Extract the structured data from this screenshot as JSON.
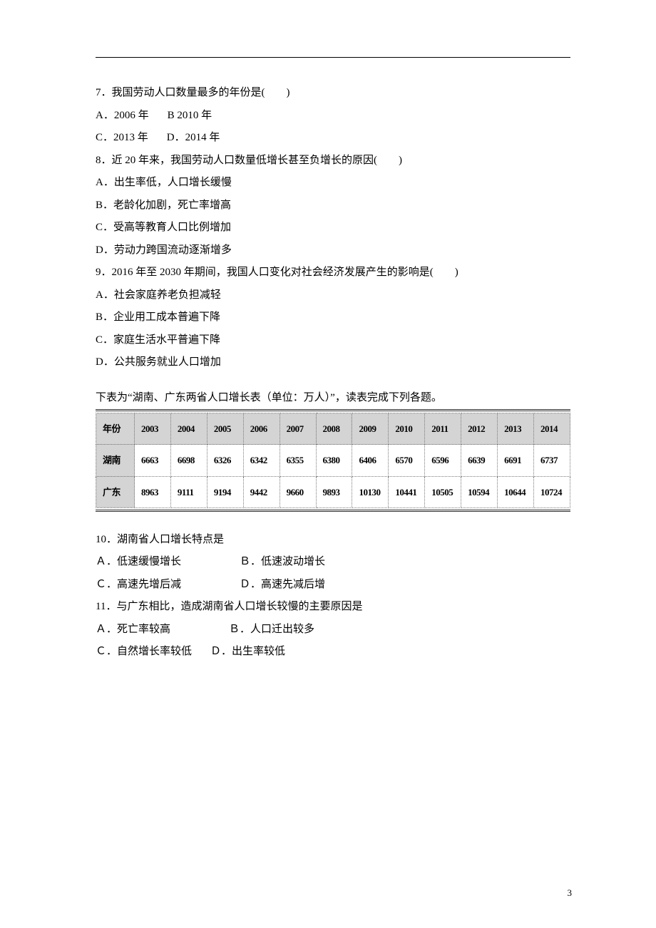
{
  "q7": {
    "stem": "7．我国劳动人口数量最多的年份是(　　)",
    "optA": "A．2006 年",
    "optB": "B 2010 年",
    "optC": "C．2013 年",
    "optD": "D．2014 年"
  },
  "q8": {
    "stem": "8．近 20 年来，我国劳动人口数量低增长甚至负增长的原因(　　)",
    "optA": "A．出生率低，人口增长缓慢",
    "optB": "B．老龄化加剧，死亡率增高",
    "optC": "C．受高等教育人口比例增加",
    "optD": "D．劳动力跨国流动逐渐增多"
  },
  "q9": {
    "stem": "9．2016 年至 2030 年期间，我国人口变化对社会经济发展产生的影响是(　　)",
    "optA": "A．社会家庭养老负担减轻",
    "optB": "B．企业用工成本普遍下降",
    "optC": "C．家庭生活水平普遍下降",
    "optD": "D．公共服务就业人口增加"
  },
  "table_intro": "下表为“湖南、广东两省人口增长表（单位：万人）”，读表完成下列各题。",
  "pop_table": {
    "type": "table",
    "header_bg_pattern": "dotted-gray-crosshatch",
    "border_style": "dotted",
    "border_color": "#7a7a7a",
    "outer_border": "double-3px",
    "font_weight": "bold",
    "font_size_pt": 10,
    "columns": [
      "年份",
      "2003",
      "2004",
      "2005",
      "2006",
      "2007",
      "2008",
      "2009",
      "2010",
      "2011",
      "2012",
      "2013",
      "2014"
    ],
    "rows": [
      {
        "label": "湖南",
        "values": [
          "6663",
          "6698",
          "6326",
          "6342",
          "6355",
          "6380",
          "6406",
          "6570",
          "6596",
          "6639",
          "6691",
          "6737"
        ]
      },
      {
        "label": "广东",
        "values": [
          "8963",
          "9111",
          "9194",
          "9442",
          "9660",
          "9893",
          "10130",
          "10441",
          "10505",
          "10594",
          "10644",
          "10724"
        ]
      }
    ]
  },
  "q10": {
    "stem": "10．湖南省人口增长特点是",
    "optA": "Ａ．低速缓慢增长",
    "optB": "Ｂ．低速波动增长",
    "optC": "Ｃ．高速先增后减",
    "optD": "Ｄ．高速先减后增"
  },
  "q11": {
    "stem": "11．与广东相比，造成湖南省人口增长较慢的主要原因是",
    "optA": "Ａ．死亡率较高",
    "optB": "Ｂ．人口迁出较多",
    "optC": "Ｃ．自然增长率较低",
    "optD": "Ｄ．出生率较低"
  },
  "page_number": "3"
}
